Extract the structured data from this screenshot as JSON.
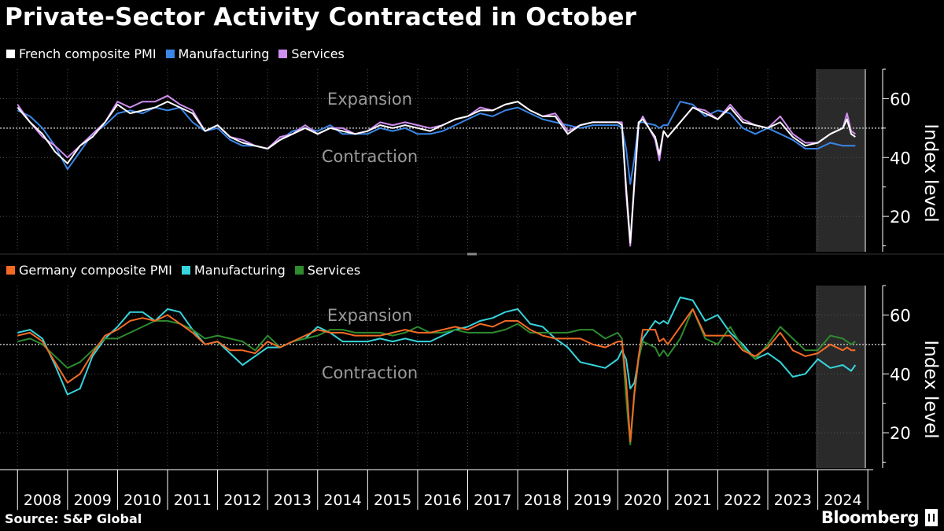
{
  "title": "Private-Sector Activity Contracted in October",
  "source": "Source: S&P Global",
  "brand": "Bloomberg",
  "colors": {
    "french_composite": "#ffffff",
    "french_manufacturing": "#3a86e6",
    "french_services": "#d08ef0",
    "germany_composite": "#f46a25",
    "germany_manufacturing": "#36d4dc",
    "germany_services": "#2e8b2e",
    "gridline": "#555555",
    "threshold": "#bbbbbb",
    "highlight_band": "#2a2a2a"
  },
  "x_axis": {
    "tick_labels": [
      "2008",
      "2009",
      "2010",
      "2011",
      "2012",
      "2013",
      "2014",
      "2015",
      "2016",
      "2017",
      "2018",
      "2019",
      "2020",
      "2021",
      "2022",
      "2023",
      "2024"
    ]
  },
  "chart_data": [
    {
      "type": "line",
      "panel": "France",
      "x": [
        "2008-01",
        "2008-04",
        "2008-07",
        "2008-10",
        "2009-01",
        "2009-04",
        "2009-07",
        "2009-10",
        "2010-01",
        "2010-04",
        "2010-07",
        "2010-10",
        "2011-01",
        "2011-04",
        "2011-07",
        "2011-10",
        "2012-01",
        "2012-04",
        "2012-07",
        "2012-10",
        "2013-01",
        "2013-04",
        "2013-07",
        "2013-10",
        "2014-01",
        "2014-04",
        "2014-07",
        "2014-10",
        "2015-01",
        "2015-04",
        "2015-07",
        "2015-10",
        "2016-01",
        "2016-04",
        "2016-07",
        "2016-10",
        "2017-01",
        "2017-04",
        "2017-07",
        "2017-10",
        "2018-01",
        "2018-04",
        "2018-07",
        "2018-10",
        "2019-01",
        "2019-04",
        "2019-07",
        "2019-10",
        "2020-01",
        "2020-02",
        "2020-03",
        "2020-04",
        "2020-05",
        "2020-06",
        "2020-07",
        "2020-10",
        "2020-11",
        "2020-12",
        "2021-01",
        "2021-04",
        "2021-07",
        "2021-10",
        "2022-01",
        "2022-04",
        "2022-07",
        "2022-10",
        "2023-01",
        "2023-04",
        "2023-07",
        "2023-10",
        "2024-01",
        "2024-04",
        "2024-07",
        "2024-08",
        "2024-09",
        "2024-10"
      ],
      "series": [
        {
          "name": "French composite PMI",
          "values": [
            57,
            52,
            48,
            42,
            38,
            44,
            47,
            52,
            58,
            55,
            56,
            57,
            59,
            57,
            55,
            49,
            51,
            47,
            45,
            44,
            43,
            46,
            48,
            50,
            48,
            50,
            49,
            48,
            49,
            51,
            50,
            51,
            50,
            49,
            51,
            53,
            54,
            56,
            56,
            58,
            59,
            56,
            54,
            54,
            48,
            51,
            52,
            52,
            52,
            51,
            30,
            11,
            32,
            52,
            53,
            47,
            41,
            49,
            47,
            52,
            57,
            55,
            53,
            57,
            52,
            51,
            50,
            52,
            47,
            44,
            45,
            48,
            50,
            53,
            48,
            47
          ]
        },
        {
          "name": "Manufacturing",
          "values": [
            56,
            54,
            50,
            44,
            36,
            42,
            48,
            51,
            55,
            56,
            55,
            57,
            56,
            57,
            52,
            49,
            50,
            46,
            44,
            44,
            43,
            46,
            49,
            50,
            49,
            51,
            48,
            48,
            48,
            50,
            49,
            50,
            48,
            48,
            49,
            51,
            53,
            55,
            54,
            56,
            57,
            55,
            53,
            52,
            51,
            50,
            51,
            51,
            51,
            50,
            43,
            31,
            40,
            52,
            52,
            51,
            50,
            51,
            51,
            59,
            58,
            54,
            56,
            55,
            50,
            48,
            50,
            48,
            46,
            43,
            43,
            45,
            44,
            44,
            44,
            44
          ]
        },
        {
          "name": "Services",
          "values": [
            58,
            52,
            47,
            44,
            40,
            44,
            48,
            52,
            59,
            57,
            59,
            59,
            61,
            58,
            56,
            49,
            51,
            47,
            46,
            44,
            43,
            47,
            48,
            51,
            48,
            50,
            50,
            48,
            49,
            52,
            51,
            52,
            51,
            50,
            51,
            53,
            54,
            57,
            56,
            58,
            59,
            56,
            54,
            55,
            49,
            51,
            52,
            52,
            52,
            52,
            28,
            10,
            31,
            51,
            54,
            46,
            39,
            49,
            47,
            52,
            57,
            56,
            53,
            58,
            53,
            51,
            50,
            54,
            48,
            45,
            45,
            48,
            50,
            55,
            49,
            48
          ]
        }
      ],
      "ylabel": "Index level",
      "ylim": [
        8,
        70
      ],
      "y_ticks": [
        20,
        40,
        60
      ],
      "threshold": 50,
      "annotations": [
        "Expansion",
        "Contraction"
      ],
      "grid": true,
      "legend": "top-left"
    },
    {
      "type": "line",
      "panel": "Germany",
      "x": [
        "2008-01",
        "2008-04",
        "2008-07",
        "2008-10",
        "2009-01",
        "2009-04",
        "2009-07",
        "2009-10",
        "2010-01",
        "2010-04",
        "2010-07",
        "2010-10",
        "2011-01",
        "2011-04",
        "2011-07",
        "2011-10",
        "2012-01",
        "2012-04",
        "2012-07",
        "2012-10",
        "2013-01",
        "2013-04",
        "2013-07",
        "2013-10",
        "2014-01",
        "2014-04",
        "2014-07",
        "2014-10",
        "2015-01",
        "2015-04",
        "2015-07",
        "2015-10",
        "2016-01",
        "2016-04",
        "2016-07",
        "2016-10",
        "2017-01",
        "2017-04",
        "2017-07",
        "2017-10",
        "2018-01",
        "2018-04",
        "2018-07",
        "2018-10",
        "2019-01",
        "2019-04",
        "2019-07",
        "2019-10",
        "2020-01",
        "2020-02",
        "2020-03",
        "2020-04",
        "2020-05",
        "2020-06",
        "2020-07",
        "2020-10",
        "2020-11",
        "2020-12",
        "2021-01",
        "2021-04",
        "2021-07",
        "2021-10",
        "2022-01",
        "2022-04",
        "2022-07",
        "2022-10",
        "2023-01",
        "2023-04",
        "2023-07",
        "2023-10",
        "2024-01",
        "2024-04",
        "2024-07",
        "2024-08",
        "2024-09",
        "2024-10"
      ],
      "series": [
        {
          "name": "Germany composite PMI",
          "values": [
            53,
            54,
            51,
            44,
            37,
            40,
            47,
            53,
            55,
            58,
            59,
            58,
            60,
            57,
            54,
            50,
            51,
            48,
            48,
            47,
            51,
            49,
            51,
            53,
            55,
            54,
            54,
            53,
            53,
            53,
            54,
            55,
            54,
            54,
            55,
            56,
            55,
            57,
            56,
            58,
            58,
            55,
            53,
            52,
            52,
            52,
            50,
            49,
            51,
            51,
            38,
            17,
            34,
            46,
            55,
            55,
            51,
            52,
            50,
            56,
            62,
            53,
            53,
            53,
            48,
            46,
            49,
            54,
            48,
            46,
            47,
            50,
            48,
            49,
            48,
            48
          ]
        },
        {
          "name": "Manufacturing",
          "values": [
            54,
            55,
            52,
            43,
            33,
            35,
            46,
            52,
            56,
            61,
            61,
            58,
            62,
            61,
            55,
            50,
            51,
            47,
            43,
            46,
            49,
            49,
            51,
            52,
            56,
            54,
            51,
            51,
            51,
            52,
            51,
            52,
            51,
            51,
            53,
            55,
            56,
            58,
            59,
            61,
            62,
            57,
            56,
            52,
            49,
            44,
            43,
            42,
            45,
            48,
            45,
            35,
            37,
            45,
            52,
            58,
            57,
            58,
            57,
            66,
            65,
            58,
            60,
            54,
            50,
            45,
            47,
            44,
            39,
            40,
            45,
            42,
            43,
            42,
            41,
            43
          ]
        },
        {
          "name": "Services",
          "values": [
            51,
            52,
            50,
            46,
            42,
            44,
            48,
            52,
            52,
            54,
            56,
            58,
            58,
            57,
            55,
            52,
            53,
            52,
            51,
            48,
            53,
            49,
            51,
            52,
            53,
            55,
            55,
            54,
            54,
            54,
            53,
            54,
            56,
            54,
            54,
            55,
            54,
            54,
            54,
            55,
            57,
            54,
            54,
            54,
            54,
            55,
            55,
            52,
            54,
            52,
            32,
            16,
            33,
            45,
            51,
            49,
            46,
            48,
            46,
            52,
            62,
            52,
            50,
            56,
            49,
            45,
            50,
            56,
            52,
            48,
            48,
            53,
            52,
            51,
            50,
            51
          ]
        }
      ],
      "ylabel": "Index level",
      "ylim": [
        8,
        70
      ],
      "y_ticks": [
        20,
        40,
        60
      ],
      "threshold": 50,
      "annotations": [
        "Expansion",
        "Contraction"
      ],
      "grid": true,
      "legend": "top-left"
    }
  ]
}
